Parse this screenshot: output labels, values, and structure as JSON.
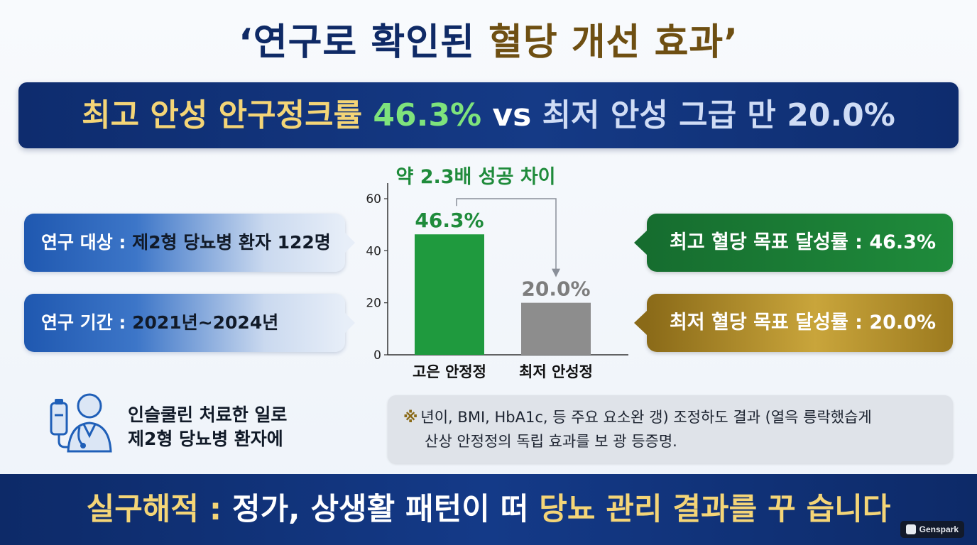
{
  "title": {
    "part1": "‘연구로 확인된 ",
    "part2": "혈당 개선 효과’"
  },
  "headline": {
    "part1": "최고 안성 안구정크률 ",
    "part2": "46.3%",
    "part3": " vs ",
    "part4": "최저 안성 그급 만 20.0%"
  },
  "info": {
    "subject_label": "연구 대상 : ",
    "subject_value": "제2형 당뇨병 환자 122명",
    "period_label": "연구 기간 : ",
    "period_value": "2021년~2024년"
  },
  "results": {
    "best": "최고 혈당 목표 달성률 : 46.3%",
    "worst": "최저 혈당 목표 달성률 : 20.0%"
  },
  "chart_data": {
    "type": "bar",
    "title": "약 2.3배 성공 차이",
    "categories": [
      "고은 안정정",
      "최저 안성정"
    ],
    "values": [
      46.3,
      20.0
    ],
    "data_labels": [
      "46.3%",
      "20.0%"
    ],
    "bar_colors": [
      "#1f9a3e",
      "#8d8d8d"
    ],
    "label_colors": [
      "#1f8b3b",
      "#7d7d7d"
    ],
    "title_color": "#1f8b3b",
    "yticks": [
      0,
      20,
      40,
      60
    ],
    "ylim": [
      0,
      60
    ],
    "xlabel": "",
    "ylabel": "",
    "grid": false,
    "legend": "none"
  },
  "note_left": {
    "line1": "인슬쿨린 처료한 일로",
    "line2": "제2형 당뇨병 환자에"
  },
  "note_box": {
    "mark": "※",
    "line1": "년이, BMI, HbA1c, 등 주요 요소완 갱) 조정하도 결과 (열윽 릉락했습게",
    "line2": "산상 안정정의 독립 효과를 보 광 등증명."
  },
  "footer": {
    "part1": "실구해적 : ",
    "part2": "정가, 상생활 패턴이 떠 ",
    "part3": "당뇨 관리 결과를 꾸 습니다"
  },
  "badge": {
    "icon": "genspark-logo-icon",
    "text": "Genspark"
  },
  "colors": {
    "navy": "#0f2a66",
    "gold": "#f4d577",
    "green": "#1f8b3b",
    "gray": "#8d8d8d"
  }
}
